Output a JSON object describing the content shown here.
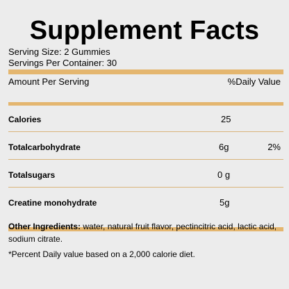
{
  "title": "Supplement Facts",
  "serving_size": "Serving Size: 2 Gummies",
  "servings_per_container": "Servings Per Container: 30",
  "amount_per_serving_label": "Amount Per Serving",
  "daily_value_label": "%Daily Value",
  "nutrients": [
    {
      "name": "Calories",
      "amount": "25",
      "dv": ""
    },
    {
      "name": "Totalcarbohydrate",
      "amount": "6g",
      "dv": "2%"
    },
    {
      "name": "Totalsugars",
      "amount": "0 g",
      "dv": ""
    },
    {
      "name": "Creatine monohydrate",
      "amount": "5g",
      "dv": ""
    }
  ],
  "other_ingredients_label": "Other Ingredients:",
  "other_ingredients_text": "water, natural fruit flavor, pectincitric acid, lactic acid, sodium citrate.",
  "footnote": "*Percent Daily value based on a 2,000 calorie diet.",
  "colors": {
    "background": "#ececec",
    "accent_bar": "#e4b66f",
    "rule": "#d9b47a"
  }
}
